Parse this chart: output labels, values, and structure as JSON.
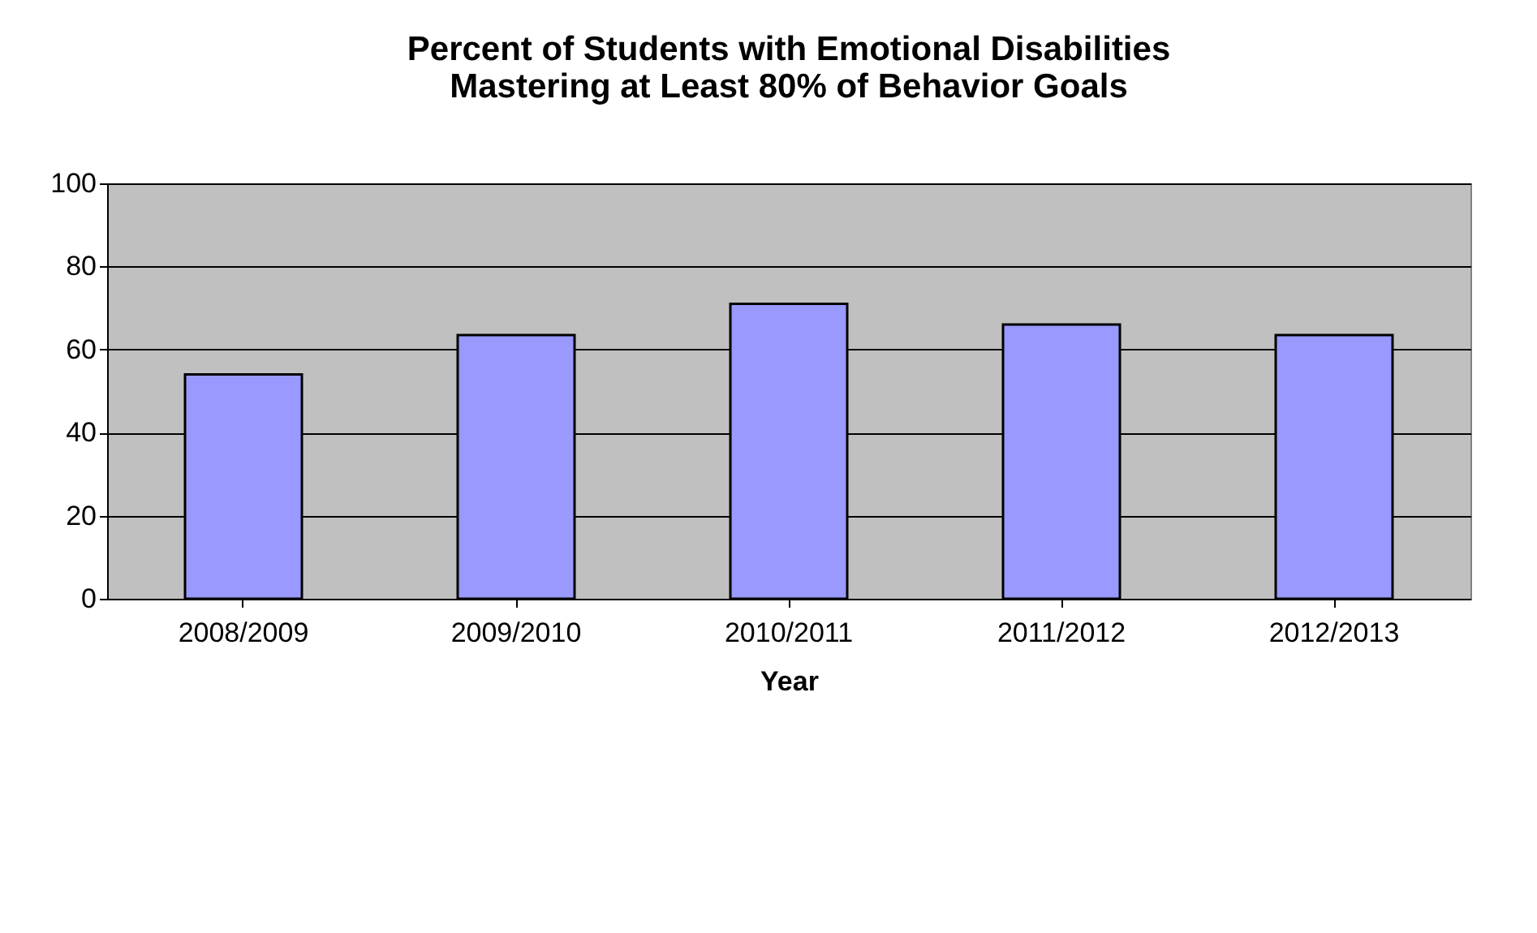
{
  "chart_data": {
    "type": "bar",
    "title": [
      "Percent of Students with Emotional Disabilities",
      "Mastering at Least 80%  of Behavior Goals"
    ],
    "xlabel": "Year",
    "categories": [
      "2008/2009",
      "2009/2010",
      "2010/2011",
      "2011/2012",
      "2012/2013"
    ],
    "values": [
      54,
      63.5,
      71,
      66,
      63.5
    ],
    "color": "#9999ff",
    "ylim": [
      0,
      100
    ],
    "yticks": [
      0,
      20,
      40,
      60,
      80,
      100
    ],
    "grid": "y"
  }
}
